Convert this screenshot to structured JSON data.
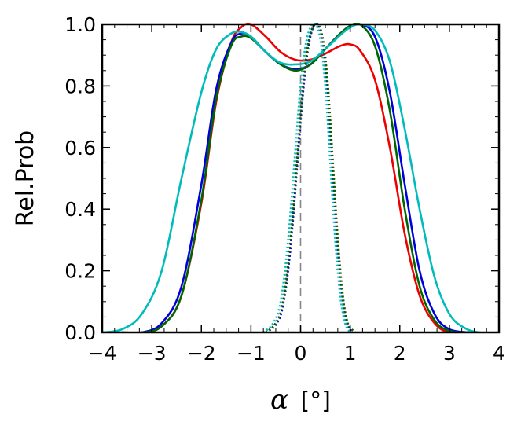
{
  "chart_data": {
    "type": "line",
    "title": "",
    "xlabel_symbol": "α",
    "xlabel_unit": "[°]",
    "ylabel": "Rel.Prob",
    "xlim": [
      -4,
      4
    ],
    "ylim": [
      0,
      1.0
    ],
    "x_ticks": [
      -4,
      -3,
      -2,
      -1,
      0,
      1,
      2,
      3,
      4
    ],
    "x_tick_labels": [
      "−4",
      "−3",
      "−2",
      "−1",
      "0",
      "1",
      "2",
      "3",
      "4"
    ],
    "y_ticks": [
      0,
      0.2,
      0.4,
      0.6,
      0.8,
      1.0
    ],
    "y_tick_labels": [
      "0.0",
      "0.2",
      "0.4",
      "0.6",
      "0.8",
      "1.0"
    ],
    "grid": false,
    "legend": "none",
    "reference_line": {
      "x": 0,
      "style": "dashed",
      "color": "#888888"
    },
    "series": [
      {
        "color": "#ee0000",
        "style": "solid",
        "points": [
          [
            -3.6,
            0
          ],
          [
            -3.2,
            0.0
          ],
          [
            -2.8,
            0.02
          ],
          [
            -2.4,
            0.12
          ],
          [
            -2.0,
            0.42
          ],
          [
            -1.7,
            0.75
          ],
          [
            -1.4,
            0.94
          ],
          [
            -1.2,
            0.99
          ],
          [
            -1.0,
            1.0
          ],
          [
            -0.7,
            0.96
          ],
          [
            -0.4,
            0.91
          ],
          [
            -0.1,
            0.885
          ],
          [
            0.2,
            0.885
          ],
          [
            0.5,
            0.905
          ],
          [
            0.8,
            0.93
          ],
          [
            1.0,
            0.935
          ],
          [
            1.2,
            0.915
          ],
          [
            1.5,
            0.82
          ],
          [
            1.8,
            0.6
          ],
          [
            2.1,
            0.32
          ],
          [
            2.4,
            0.12
          ],
          [
            2.7,
            0.03
          ],
          [
            3.0,
            0.0
          ],
          [
            3.4,
            0
          ]
        ]
      },
      {
        "color": "#0000dd",
        "style": "solid",
        "points": [
          [
            -3.6,
            0
          ],
          [
            -3.2,
            0.0
          ],
          [
            -2.8,
            0.03
          ],
          [
            -2.4,
            0.15
          ],
          [
            -2.0,
            0.48
          ],
          [
            -1.7,
            0.79
          ],
          [
            -1.4,
            0.94
          ],
          [
            -1.2,
            0.97
          ],
          [
            -1.0,
            0.96
          ],
          [
            -0.7,
            0.91
          ],
          [
            -0.4,
            0.87
          ],
          [
            -0.1,
            0.855
          ],
          [
            0.2,
            0.87
          ],
          [
            0.5,
            0.92
          ],
          [
            0.8,
            0.97
          ],
          [
            1.0,
            0.99
          ],
          [
            1.2,
            1.0
          ],
          [
            1.5,
            0.96
          ],
          [
            1.8,
            0.78
          ],
          [
            2.1,
            0.48
          ],
          [
            2.4,
            0.2
          ],
          [
            2.7,
            0.06
          ],
          [
            3.0,
            0.01
          ],
          [
            3.4,
            0
          ]
        ]
      },
      {
        "color": "#006600",
        "style": "solid",
        "points": [
          [
            -3.6,
            0
          ],
          [
            -3.2,
            0.0
          ],
          [
            -2.8,
            0.02
          ],
          [
            -2.4,
            0.12
          ],
          [
            -2.0,
            0.43
          ],
          [
            -1.7,
            0.76
          ],
          [
            -1.4,
            0.93
          ],
          [
            -1.2,
            0.96
          ],
          [
            -1.0,
            0.955
          ],
          [
            -0.7,
            0.91
          ],
          [
            -0.4,
            0.87
          ],
          [
            -0.1,
            0.85
          ],
          [
            0.2,
            0.87
          ],
          [
            0.5,
            0.92
          ],
          [
            0.8,
            0.97
          ],
          [
            1.0,
            0.995
          ],
          [
            1.2,
            1.0
          ],
          [
            1.5,
            0.93
          ],
          [
            1.8,
            0.72
          ],
          [
            2.1,
            0.4
          ],
          [
            2.4,
            0.15
          ],
          [
            2.7,
            0.04
          ],
          [
            3.0,
            0.005
          ],
          [
            3.4,
            0
          ]
        ]
      },
      {
        "color": "#00bbbb",
        "style": "solid",
        "points": [
          [
            -4.0,
            0
          ],
          [
            -3.6,
            0.01
          ],
          [
            -3.2,
            0.06
          ],
          [
            -2.8,
            0.2
          ],
          [
            -2.4,
            0.5
          ],
          [
            -2.0,
            0.78
          ],
          [
            -1.7,
            0.92
          ],
          [
            -1.4,
            0.97
          ],
          [
            -1.2,
            0.975
          ],
          [
            -1.0,
            0.96
          ],
          [
            -0.7,
            0.91
          ],
          [
            -0.4,
            0.875
          ],
          [
            -0.1,
            0.87
          ],
          [
            0.2,
            0.88
          ],
          [
            0.5,
            0.92
          ],
          [
            0.8,
            0.965
          ],
          [
            1.0,
            0.99
          ],
          [
            1.2,
            1.0
          ],
          [
            1.5,
            0.98
          ],
          [
            1.8,
            0.88
          ],
          [
            2.1,
            0.66
          ],
          [
            2.4,
            0.4
          ],
          [
            2.7,
            0.18
          ],
          [
            3.0,
            0.06
          ],
          [
            3.3,
            0.015
          ],
          [
            3.6,
            0.0
          ],
          [
            4.0,
            0
          ]
        ]
      },
      {
        "color": "#ee0000",
        "style": "dotted",
        "points": [
          [
            -0.7,
            0
          ],
          [
            -0.5,
            0.03
          ],
          [
            -0.35,
            0.1
          ],
          [
            -0.2,
            0.3
          ],
          [
            -0.05,
            0.6
          ],
          [
            0.05,
            0.8
          ],
          [
            0.15,
            0.93
          ],
          [
            0.25,
            0.99
          ],
          [
            0.35,
            1.0
          ],
          [
            0.45,
            0.95
          ],
          [
            0.55,
            0.8
          ],
          [
            0.65,
            0.55
          ],
          [
            0.75,
            0.3
          ],
          [
            0.85,
            0.12
          ],
          [
            0.95,
            0.03
          ],
          [
            1.1,
            0
          ]
        ]
      },
      {
        "color": "#0000dd",
        "style": "dotted",
        "points": [
          [
            -0.7,
            0
          ],
          [
            -0.5,
            0.025
          ],
          [
            -0.35,
            0.09
          ],
          [
            -0.2,
            0.28
          ],
          [
            -0.05,
            0.58
          ],
          [
            0.05,
            0.78
          ],
          [
            0.15,
            0.92
          ],
          [
            0.25,
            0.99
          ],
          [
            0.33,
            1.0
          ],
          [
            0.43,
            0.95
          ],
          [
            0.53,
            0.8
          ],
          [
            0.63,
            0.55
          ],
          [
            0.73,
            0.3
          ],
          [
            0.83,
            0.12
          ],
          [
            0.93,
            0.03
          ],
          [
            1.05,
            0
          ]
        ]
      },
      {
        "color": "#006600",
        "style": "dotted",
        "points": [
          [
            -0.7,
            0
          ],
          [
            -0.5,
            0.03
          ],
          [
            -0.35,
            0.1
          ],
          [
            -0.2,
            0.3
          ],
          [
            -0.05,
            0.6
          ],
          [
            0.05,
            0.8
          ],
          [
            0.15,
            0.93
          ],
          [
            0.25,
            0.99
          ],
          [
            0.35,
            1.0
          ],
          [
            0.45,
            0.95
          ],
          [
            0.55,
            0.8
          ],
          [
            0.65,
            0.55
          ],
          [
            0.75,
            0.3
          ],
          [
            0.85,
            0.12
          ],
          [
            0.95,
            0.03
          ],
          [
            1.1,
            0
          ]
        ]
      },
      {
        "color": "#00bbbb",
        "style": "dotted",
        "points": [
          [
            -0.75,
            0
          ],
          [
            -0.55,
            0.03
          ],
          [
            -0.4,
            0.1
          ],
          [
            -0.25,
            0.3
          ],
          [
            -0.1,
            0.6
          ],
          [
            0.0,
            0.8
          ],
          [
            0.1,
            0.93
          ],
          [
            0.2,
            0.99
          ],
          [
            0.3,
            1.0
          ],
          [
            0.4,
            0.95
          ],
          [
            0.5,
            0.8
          ],
          [
            0.6,
            0.55
          ],
          [
            0.7,
            0.3
          ],
          [
            0.8,
            0.12
          ],
          [
            0.9,
            0.03
          ],
          [
            1.0,
            0
          ]
        ]
      }
    ]
  }
}
